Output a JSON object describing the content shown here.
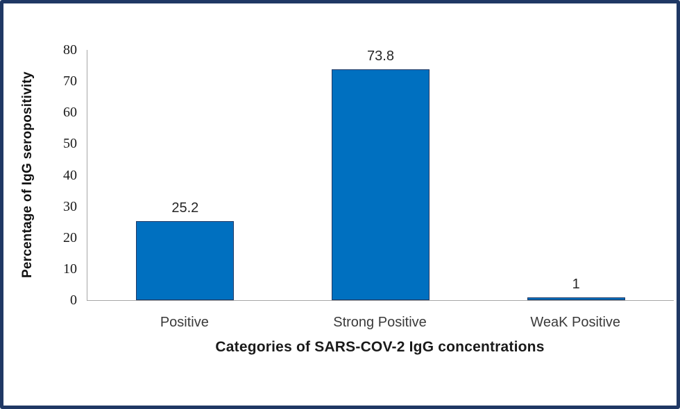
{
  "frame": {
    "border_color": "#1f3864",
    "background_color": "#ffffff"
  },
  "chart_data": {
    "type": "bar",
    "categories": [
      "Positive",
      "Strong Positive",
      "WeaK Positive"
    ],
    "values": [
      25.2,
      73.8,
      1
    ],
    "data_labels": [
      "25.2",
      "73.8",
      "1"
    ],
    "title": "",
    "xlabel": "Categories of SARS-COV-2 IgG concentrations",
    "ylabel": "Percentage of IgG seropositivity",
    "ylim": [
      0,
      80
    ],
    "yticks": [
      0,
      10,
      20,
      30,
      40,
      50,
      60,
      70,
      80
    ],
    "grid": false,
    "legend": false,
    "bar_color": "#0070c0",
    "bar_border_color": "#1f3864",
    "axis_line_color": "#a6a6a6"
  }
}
